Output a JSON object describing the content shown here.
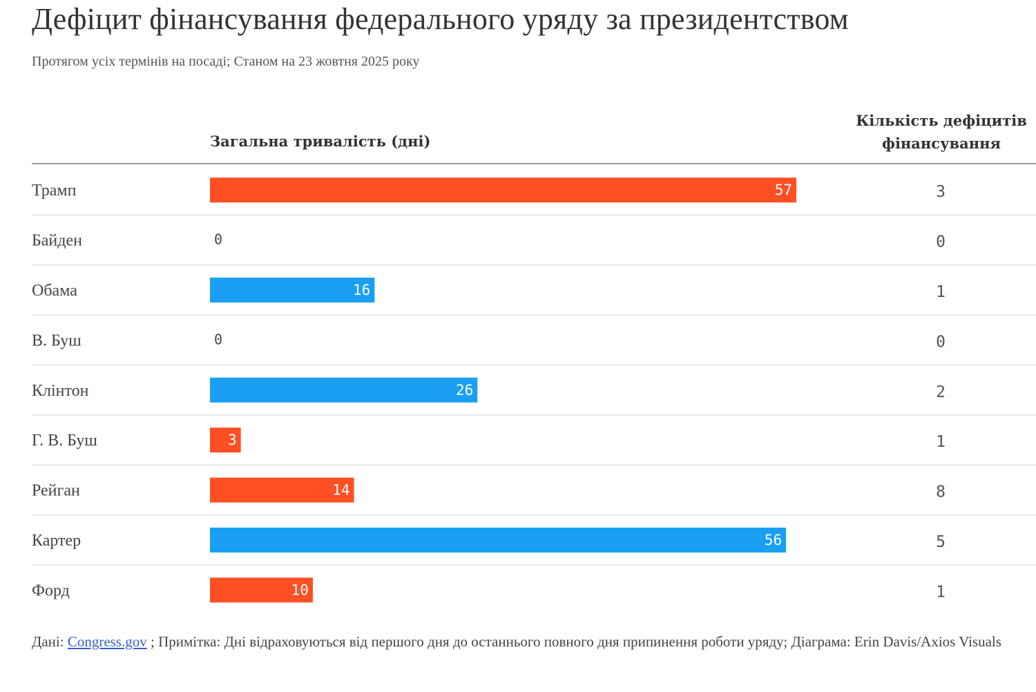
{
  "header": {
    "title": "Дефіцит фінансування федерального уряду за президентством",
    "subtitle": "Протягом усіх термінів на посаді; Станом на 23 жовтня 2025 року"
  },
  "columns": {
    "bars": "Загальна тривалість (дні)",
    "count_line1": "Кількість дефіцитів",
    "count_line2": "фінансування"
  },
  "colors": {
    "republican": "#ff4f23",
    "democrat": "#1a9ff2",
    "divider": "#e3e3e3"
  },
  "chart_data": {
    "type": "bar",
    "orientation": "horizontal",
    "title": "Дефіцит фінансування федерального уряду за президентством",
    "xlabel": "Загальна тривалість (дні)",
    "xlim": [
      0,
      57
    ],
    "categories": [
      "Трамп",
      "Байден",
      "Обама",
      "В. Буш",
      "Клінтон",
      "Г. В. Буш",
      "Рейган",
      "Картер",
      "Форд"
    ],
    "values": [
      57,
      0,
      16,
      0,
      26,
      3,
      14,
      56,
      10
    ],
    "value_labels": [
      "57",
      "0",
      "16",
      "0",
      "26",
      "3",
      "14",
      "56",
      "10"
    ],
    "party": [
      "republican",
      "democrat",
      "democrat",
      "republican",
      "democrat",
      "republican",
      "republican",
      "democrat",
      "republican"
    ],
    "counts": [
      3,
      0,
      1,
      0,
      2,
      1,
      8,
      5,
      1
    ],
    "count_labels": [
      "3",
      "0",
      "1",
      "0",
      "2",
      "1",
      "8",
      "5",
      "1"
    ]
  },
  "footnote": {
    "source_prefix": "Дані: ",
    "source_link": "Congress.gov",
    "rest": " ; Примітка: Дні відраховуються від першого дня до останнього повного дня припинення роботи уряду; Діаграма: Erin Davis/Axios Visuals"
  }
}
